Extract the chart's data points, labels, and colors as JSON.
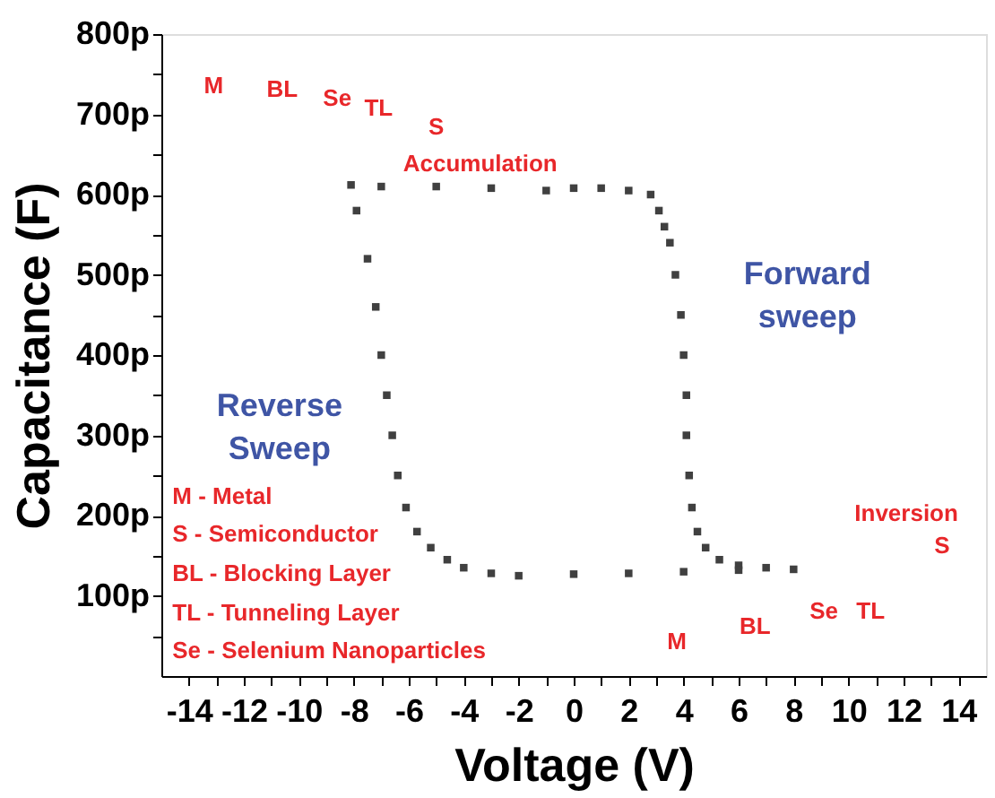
{
  "chart_data": {
    "type": "scatter",
    "xlabel": "Voltage (V)",
    "ylabel": "Capacitance (F)",
    "marker": "square",
    "grid": false,
    "series": [
      {
        "color": "#404040",
        "x": [
          -8.1,
          -7.0,
          -5.0,
          -3.0,
          -1.0,
          0.0,
          1.0,
          2.0,
          2.8,
          3.1,
          3.3,
          3.5,
          3.7,
          3.9,
          4.0,
          4.1,
          4.1,
          4.2,
          4.3,
          4.5,
          4.8,
          5.3,
          6.0,
          7.0,
          8.0,
          6.0,
          4.0,
          2.0,
          0.0,
          -2.0,
          -3.0,
          -4.0,
          -4.6,
          -5.2,
          -5.7,
          -6.1,
          -6.4,
          -6.6,
          -6.8,
          -7.0,
          -7.2,
          -7.5,
          -7.9
        ],
        "values": [
          612,
          610,
          610,
          608,
          605,
          608,
          608,
          605,
          600,
          580,
          560,
          540,
          500,
          450,
          400,
          350,
          300,
          250,
          210,
          180,
          160,
          145,
          138,
          135,
          133,
          132,
          130,
          128,
          127,
          125,
          128,
          135,
          145,
          160,
          180,
          210,
          250,
          300,
          350,
          400,
          460,
          520,
          580
        ]
      }
    ],
    "xlim": [
      -15,
      15
    ],
    "xticks": [
      -14,
      {
        "value": -13,
        "label": null
      },
      -12,
      {
        "value": -11,
        "label": null
      },
      -10,
      {
        "value": -9,
        "label": null
      },
      -8,
      {
        "value": -7,
        "label": null
      },
      -6,
      {
        "value": -5,
        "label": null
      },
      -4,
      {
        "value": -3,
        "label": null
      },
      -2,
      {
        "value": -1,
        "label": null
      },
      0,
      {
        "value": 1,
        "label": null
      },
      2,
      {
        "value": 3,
        "label": null
      },
      4,
      {
        "value": 5,
        "label": null
      },
      6,
      {
        "value": 7,
        "label": null
      },
      8,
      {
        "value": 9,
        "label": null
      },
      10,
      {
        "value": 11,
        "label": null
      },
      12,
      {
        "value": 13,
        "label": null
      },
      14
    ],
    "ylim": [
      0,
      800
    ],
    "yticks": [
      {
        "value": 50,
        "label": null
      },
      {
        "value": 100,
        "label": "100p"
      },
      {
        "value": 150,
        "label": null
      },
      {
        "value": 200,
        "label": "200p"
      },
      {
        "value": 250,
        "label": null
      },
      {
        "value": 300,
        "label": "300p"
      },
      {
        "value": 350,
        "label": null
      },
      {
        "value": 400,
        "label": "400p"
      },
      {
        "value": 450,
        "label": null
      },
      {
        "value": 500,
        "label": "500p"
      },
      {
        "value": 550,
        "label": null
      },
      {
        "value": 600,
        "label": "600p"
      },
      {
        "value": 650,
        "label": null
      },
      {
        "value": 700,
        "label": "700p"
      },
      {
        "value": 750,
        "label": null
      },
      {
        "value": 800,
        "label": "800p"
      }
    ],
    "annotations": [
      "M",
      "BL",
      "Se",
      "TL",
      "S",
      "Accumulation",
      "Forward sweep",
      "Reverse Sweep",
      "M - Metal",
      "S - Semiconductor",
      "BL - Blocking Layer",
      "TL - Tunneling Layer",
      "Se - Selenium Nanoparticles",
      "Inversion",
      "S",
      "M",
      "BL",
      "Se",
      "TL"
    ]
  }
}
